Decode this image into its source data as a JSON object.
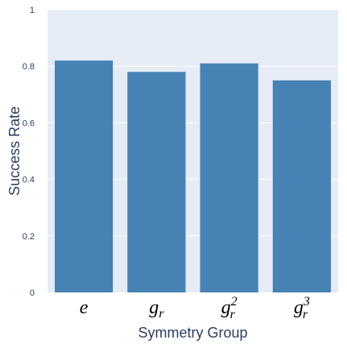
{
  "chart_data": {
    "type": "bar",
    "categories": [
      {
        "base": "e",
        "sub": "",
        "sup": ""
      },
      {
        "base": "g",
        "sub": "r",
        "sup": ""
      },
      {
        "base": "g",
        "sub": "r",
        "sup": "2"
      },
      {
        "base": "g",
        "sub": "r",
        "sup": "3"
      }
    ],
    "values": [
      0.82,
      0.78,
      0.81,
      0.75
    ],
    "xlabel": "Symmetry Group",
    "ylabel": "Success Rate",
    "ylim": [
      0,
      1
    ],
    "yticks": [
      0,
      0.2,
      0.4,
      0.6,
      0.8,
      1
    ],
    "ytick_labels": [
      "0",
      "0.2",
      "0.4",
      "0.6",
      "0.8",
      "1"
    ],
    "grid": true,
    "colors": {
      "bar": "#4682b4",
      "plot_bg": "#e5ecf6",
      "grid": "#ffffff",
      "text": "#2a3f5f"
    }
  }
}
